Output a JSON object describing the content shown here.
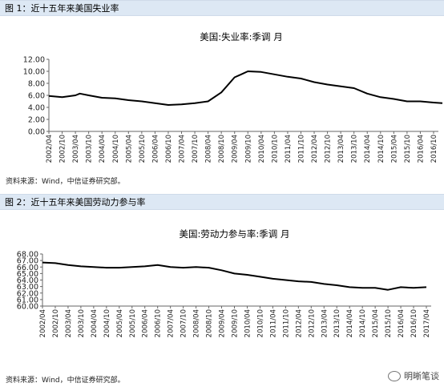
{
  "figure1": {
    "header": "图 1：近十五年来美国失业率",
    "source": "资料来源：Wind，中信证券研究部。"
  },
  "figure2": {
    "header": "图 2：近十五年来美国劳动力参与率",
    "source": "资料来源：Wind，中信证券研究部。"
  },
  "watermark": "明晰笔谈",
  "chart_data": [
    {
      "type": "line",
      "title": "美国:失业率:季调 月",
      "xlabel": "",
      "ylabel": "",
      "ylim": [
        0,
        12
      ],
      "yticks": [
        "0.00",
        "2.00",
        "4.00",
        "6.00",
        "8.00",
        "10.00",
        "12.00"
      ],
      "xticks": [
        "2002/04",
        "2002/10",
        "2003/04",
        "2003/10",
        "2004/04",
        "2004/10",
        "2005/04",
        "2005/10",
        "2006/04",
        "2006/10",
        "2007/04",
        "2007/10",
        "2008/04",
        "2008/10",
        "2009/04",
        "2009/10",
        "2010/04",
        "2010/10",
        "2011/04",
        "2011/10",
        "2012/04",
        "2012/10",
        "2013/04",
        "2013/10",
        "2014/04",
        "2014/10",
        "2015/04",
        "2015/10",
        "2016/04",
        "2016/10"
      ],
      "grid": false,
      "color": "#000000",
      "series": [
        {
          "x": [
            "2002/04",
            "2002/10",
            "2003/04",
            "2003/06",
            "2003/10",
            "2004/04",
            "2004/10",
            "2005/04",
            "2005/10",
            "2006/04",
            "2006/10",
            "2007/04",
            "2007/10",
            "2008/04",
            "2008/10",
            "2009/04",
            "2009/07",
            "2009/10",
            "2010/04",
            "2010/10",
            "2011/04",
            "2011/10",
            "2012/04",
            "2012/10",
            "2013/04",
            "2013/10",
            "2014/04",
            "2014/10",
            "2015/04",
            "2015/10",
            "2016/04",
            "2016/10",
            "2017/02"
          ],
          "values": [
            5.9,
            5.7,
            6.0,
            6.3,
            6.0,
            5.6,
            5.5,
            5.2,
            5.0,
            4.7,
            4.4,
            4.5,
            4.7,
            5.0,
            6.5,
            9.0,
            9.5,
            10.0,
            9.9,
            9.5,
            9.1,
            8.8,
            8.2,
            7.8,
            7.5,
            7.2,
            6.3,
            5.7,
            5.4,
            5.0,
            5.0,
            4.8,
            4.7
          ]
        }
      ]
    },
    {
      "type": "line",
      "title": "美国:劳动力参与率:季调 月",
      "xlabel": "",
      "ylabel": "",
      "ylim": [
        60,
        68
      ],
      "yticks": [
        "60.00",
        "61.00",
        "62.00",
        "63.00",
        "64.00",
        "65.00",
        "66.00",
        "67.00",
        "68.00"
      ],
      "xticks": [
        "2002/04",
        "2002/10",
        "2003/04",
        "2003/10",
        "2004/04",
        "2004/10",
        "2005/04",
        "2005/10",
        "2006/04",
        "2006/10",
        "2007/04",
        "2007/10",
        "2008/04",
        "2008/10",
        "2009/04",
        "2009/10",
        "2010/04",
        "2010/10",
        "2011/04",
        "2011/10",
        "2012/04",
        "2012/10",
        "2013/04",
        "2013/10",
        "2014/04",
        "2014/10",
        "2015/04",
        "2015/10",
        "2016/04",
        "2016/10",
        "2017/04"
      ],
      "grid": false,
      "color": "#000000",
      "series": [
        {
          "x": [
            "2002/04",
            "2002/10",
            "2003/04",
            "2003/10",
            "2004/04",
            "2004/10",
            "2005/04",
            "2005/10",
            "2006/04",
            "2006/10",
            "2007/04",
            "2007/10",
            "2008/04",
            "2008/10",
            "2009/04",
            "2009/10",
            "2010/04",
            "2010/10",
            "2011/04",
            "2011/10",
            "2012/04",
            "2012/10",
            "2013/04",
            "2013/10",
            "2014/04",
            "2014/10",
            "2015/04",
            "2015/10",
            "2016/04",
            "2016/10",
            "2017/04"
          ],
          "values": [
            66.7,
            66.6,
            66.3,
            66.1,
            66.0,
            65.9,
            65.9,
            66.0,
            66.1,
            66.3,
            66.0,
            65.9,
            66.0,
            65.9,
            65.5,
            65.0,
            64.8,
            64.5,
            64.2,
            64.0,
            63.8,
            63.7,
            63.4,
            63.2,
            62.9,
            62.8,
            62.8,
            62.5,
            62.9,
            62.8,
            62.9
          ]
        }
      ]
    }
  ]
}
